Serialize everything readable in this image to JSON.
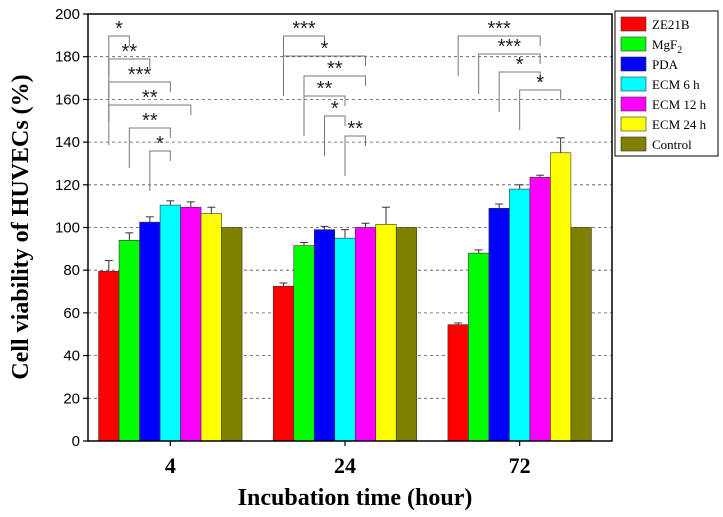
{
  "chart_data": {
    "type": "bar",
    "xlabel": "Incubation time (hour)",
    "ylabel": "Cell  viability of HUVECs (%)",
    "ylim": [
      0,
      200
    ],
    "yticks": [
      0,
      20,
      40,
      60,
      80,
      100,
      120,
      140,
      160,
      180,
      200
    ],
    "categories": [
      "4",
      "24",
      "72"
    ],
    "grid": "horizontal dashed",
    "legend_position": "top-right",
    "series": [
      {
        "name": "ZE21B",
        "color": "#ff0000",
        "values": [
          79.5,
          72.5,
          54.5
        ],
        "errors": [
          5,
          1.5,
          0.8
        ]
      },
      {
        "name": "MgF2",
        "color": "#00ff00",
        "values": [
          94,
          91.5,
          88
        ],
        "errors": [
          3.5,
          1.5,
          1.5
        ]
      },
      {
        "name": "PDA",
        "color": "#0000ff",
        "values": [
          102.5,
          99,
          109
        ],
        "errors": [
          2.5,
          1.5,
          2
        ]
      },
      {
        "name": "ECM 6 h",
        "color": "#00ffff",
        "values": [
          110.5,
          95,
          118
        ],
        "errors": [
          2,
          4,
          2
        ]
      },
      {
        "name": "ECM 12 h",
        "color": "#ff00ff",
        "values": [
          109.5,
          100,
          123.5
        ],
        "errors": [
          2.5,
          2,
          1
        ]
      },
      {
        "name": "ECM 24 h",
        "color": "#ffff00",
        "values": [
          106.5,
          101.5,
          135
        ],
        "errors": [
          3,
          8,
          7
        ]
      },
      {
        "name": "Control",
        "color": "#808000",
        "values": [
          100,
          100,
          100
        ],
        "errors": [
          0,
          0,
          0
        ]
      }
    ],
    "significance": [
      {
        "group": 0,
        "from": 0,
        "to": 1,
        "label": "*",
        "level": 1
      },
      {
        "group": 0,
        "from": 0,
        "to": 2,
        "label": "**",
        "level": 2
      },
      {
        "group": 0,
        "from": 0,
        "to": 3,
        "label": "***",
        "level": 3
      },
      {
        "group": 0,
        "from": 0,
        "to": 4,
        "label": "**",
        "level": 4
      },
      {
        "group": 0,
        "from": 1,
        "to": 3,
        "label": "**",
        "level": 5
      },
      {
        "group": 0,
        "from": 2,
        "to": 3,
        "label": "*",
        "level": 6
      },
      {
        "group": 1,
        "from": 0,
        "to": 2,
        "label": "***",
        "level": 1
      },
      {
        "group": 1,
        "from": 0,
        "to": 4,
        "label": "*",
        "level": 2
      },
      {
        "group": 1,
        "from": 1,
        "to": 4,
        "label": "**",
        "level": 3
      },
      {
        "group": 1,
        "from": 1,
        "to": 3,
        "label": "**",
        "level": 4
      },
      {
        "group": 1,
        "from": 2,
        "to": 3,
        "label": "*",
        "level": 5
      },
      {
        "group": 1,
        "from": 3,
        "to": 4,
        "label": "**",
        "level": 6
      },
      {
        "group": 2,
        "from": 0,
        "to": 4,
        "label": "***",
        "level": 1
      },
      {
        "group": 2,
        "from": 1,
        "to": 4,
        "label": "***",
        "level": 2
      },
      {
        "group": 2,
        "from": 2,
        "to": 4,
        "label": "*",
        "level": 3
      },
      {
        "group": 2,
        "from": 3,
        "to": 5,
        "label": "*",
        "level": 4
      }
    ]
  }
}
